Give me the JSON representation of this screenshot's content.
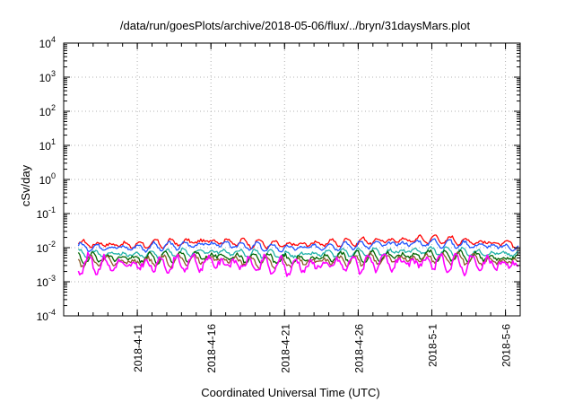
{
  "chart_data": {
    "type": "line",
    "title": "/data/run/goesPlots/archive/2018-05-06/flux/../bryn/31daysMars.plot",
    "xlabel": "Coordinated Universal Time (UTC)",
    "ylabel": "cSv/day",
    "yscale": "log",
    "ylim": [
      0.0001,
      10000
    ],
    "xlim": [
      "2018-04-06",
      "2018-05-07"
    ],
    "grid": true,
    "legend": "none",
    "x_ticks": [
      "2018-4-11",
      "2018-4-16",
      "2018-4-21",
      "2018-4-26",
      "2018-5-1",
      "2018-5-6"
    ],
    "y_ticks": [
      {
        "base": "10",
        "exp": "-4",
        "value": 0.0001
      },
      {
        "base": "10",
        "exp": "-3",
        "value": 0.001
      },
      {
        "base": "10",
        "exp": "-2",
        "value": 0.01
      },
      {
        "base": "10",
        "exp": "-1",
        "value": 0.1
      },
      {
        "base": "10",
        "exp": "0",
        "value": 1
      },
      {
        "base": "10",
        "exp": "1",
        "value": 10
      },
      {
        "base": "10",
        "exp": "2",
        "value": 100
      },
      {
        "base": "10",
        "exp": "3",
        "value": 1000
      },
      {
        "base": "10",
        "exp": "4",
        "value": 10000
      }
    ],
    "series": [
      {
        "color": "#ff0000",
        "x": [
          "2018-04-07",
          "2018-04-11",
          "2018-04-16",
          "2018-04-21",
          "2018-04-26",
          "2018-05-01",
          "2018-05-06"
        ],
        "values": [
          0.013,
          0.012,
          0.016,
          0.012,
          0.015,
          0.018,
          0.013
        ]
      },
      {
        "color": "#1f55ff",
        "x": [
          "2018-04-07",
          "2018-04-11",
          "2018-04-16",
          "2018-04-21",
          "2018-04-26",
          "2018-05-01",
          "2018-05-06"
        ],
        "values": [
          0.0105,
          0.01,
          0.013,
          0.0095,
          0.012,
          0.014,
          0.0105
        ]
      },
      {
        "color": "#20b2aa",
        "x": [
          "2018-04-07",
          "2018-04-11",
          "2018-04-16",
          "2018-04-21",
          "2018-04-26",
          "2018-05-01",
          "2018-05-06"
        ],
        "values": [
          0.0068,
          0.0062,
          0.0078,
          0.006,
          0.0072,
          0.0082,
          0.0066
        ]
      },
      {
        "color": "#006400",
        "x": [
          "2018-04-07",
          "2018-04-11",
          "2018-04-16",
          "2018-04-21",
          "2018-04-26",
          "2018-05-01",
          "2018-05-06"
        ],
        "values": [
          0.0052,
          0.0048,
          0.0058,
          0.0045,
          0.0055,
          0.0062,
          0.005
        ]
      },
      {
        "color": "#8b5a2b",
        "x": [
          "2018-04-07",
          "2018-04-11",
          "2018-04-16",
          "2018-04-21",
          "2018-04-26",
          "2018-05-01",
          "2018-05-06"
        ],
        "values": [
          0.0042,
          0.0038,
          0.0046,
          0.0036,
          0.0044,
          0.005,
          0.004
        ]
      },
      {
        "color": "#ff00ff",
        "x": [
          "2018-04-07",
          "2018-04-11",
          "2018-04-16",
          "2018-04-21",
          "2018-04-26",
          "2018-05-01",
          "2018-05-06"
        ],
        "values": [
          0.0034,
          0.003,
          0.0037,
          0.0028,
          0.0035,
          0.0036,
          0.0032
        ]
      }
    ]
  }
}
